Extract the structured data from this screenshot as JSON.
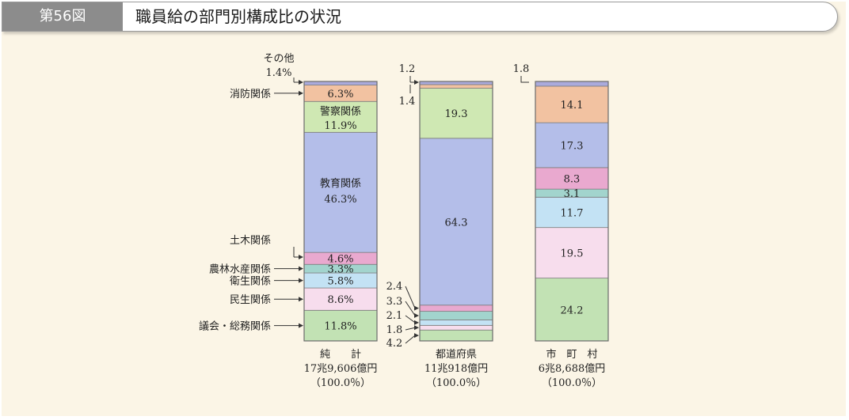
{
  "header": {
    "figure_number": "第56図",
    "title": "職員給の部門別構成比の状況"
  },
  "chart_data": {
    "type": "stacked-bar",
    "legend": "none",
    "categories_bottom_to_top": [
      "議会・総務関係",
      "民生関係",
      "衛生関係",
      "農林水産関係",
      "土木関係",
      "教育関係",
      "警察関係",
      "消防関係",
      "その他"
    ],
    "bars": [
      {
        "name": "純　　計",
        "total": "17兆9,606億円",
        "percent_total": "（100.0％）",
        "segments": [
          {
            "category": "議会・総務関係",
            "value": 11.8,
            "label": "11.8%"
          },
          {
            "category": "民生関係",
            "value": 8.6,
            "label": "8.6%"
          },
          {
            "category": "衛生関係",
            "value": 5.8,
            "label": "5.8%"
          },
          {
            "category": "農林水産関係",
            "value": 3.3,
            "label": "3.3%"
          },
          {
            "category": "土木関係",
            "value": 4.6,
            "label": "4.6%"
          },
          {
            "category": "教育関係",
            "value": 46.3,
            "label": "46.3%"
          },
          {
            "category": "警察関係",
            "value": 11.9,
            "label": "11.9%"
          },
          {
            "category": "消防関係",
            "value": 6.3,
            "label": "6.3%"
          },
          {
            "category": "その他",
            "value": 1.4,
            "label": "1.4%"
          }
        ]
      },
      {
        "name": "都道府県",
        "total": "11兆918億円",
        "percent_total": "（100.0％）",
        "segments": [
          {
            "category": "議会・総務関係",
            "value": 4.2,
            "label": "4.2"
          },
          {
            "category": "民生関係",
            "value": 1.8,
            "label": "1.8"
          },
          {
            "category": "衛生関係",
            "value": 2.1,
            "label": "2.1"
          },
          {
            "category": "農林水産関係",
            "value": 3.3,
            "label": "3.3"
          },
          {
            "category": "土木関係",
            "value": 2.4,
            "label": "2.4"
          },
          {
            "category": "教育関係",
            "value": 64.3,
            "label": "64.3"
          },
          {
            "category": "警察関係",
            "value": 19.3,
            "label": "19.3"
          },
          {
            "category": "消防関係",
            "value": 1.4,
            "label": "1.4"
          },
          {
            "category": "その他",
            "value": 1.2,
            "label": "1.2"
          }
        ]
      },
      {
        "name": "市　町　村",
        "total": "6兆8,688億円",
        "percent_total": "（100.0％）",
        "segments": [
          {
            "category": "議会・総務関係",
            "value": 24.2,
            "label": "24.2"
          },
          {
            "category": "民生関係",
            "value": 19.5,
            "label": "19.5"
          },
          {
            "category": "衛生関係",
            "value": 11.7,
            "label": "11.7"
          },
          {
            "category": "農林水産関係",
            "value": 3.1,
            "label": "3.1"
          },
          {
            "category": "土木関係",
            "value": 8.3,
            "label": "8.3"
          },
          {
            "category": "教育関係",
            "value": 17.3,
            "label": "17.3"
          },
          {
            "category": "消防関係",
            "value": 14.1,
            "label": "14.1"
          },
          {
            "category": "その他",
            "value": 1.8,
            "label": "1.8"
          }
        ]
      }
    ],
    "colors": {
      "議会・総務関係": "#c2e2b4",
      "民生関係": "#f7dded",
      "衛生関係": "#c3e2f4",
      "農林水産関係": "#a2d4cd",
      "土木関係": "#e9a9cf",
      "教育関係": "#b4bee9",
      "警察関係": "#cfe8b3",
      "消防関係": "#f2c2a1",
      "その他": "#aaaadc"
    }
  }
}
